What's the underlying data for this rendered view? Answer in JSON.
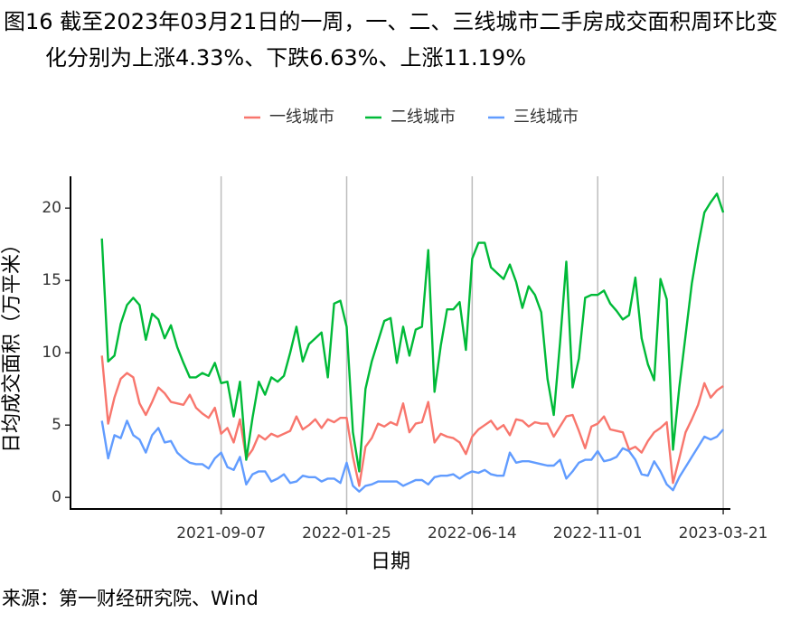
{
  "chart_data": {
    "type": "line",
    "title": "图16  截至2023年03月21日的一周，一、二、三线城市二手房成交面积周环比变化分别为上涨4.33%、下跌6.63%、上涨11.19%",
    "xlabel": "日期",
    "ylabel": "日均成交面积（万平米）",
    "source": "来源：第一财经研究院、Wind",
    "legend": "top",
    "x": [
      "2021-04-27",
      "2021-05-04",
      "2021-05-11",
      "2021-05-18",
      "2021-05-25",
      "2021-06-01",
      "2021-06-08",
      "2021-06-15",
      "2021-06-22",
      "2021-06-29",
      "2021-07-06",
      "2021-07-13",
      "2021-07-20",
      "2021-07-27",
      "2021-08-03",
      "2021-08-10",
      "2021-08-17",
      "2021-08-24",
      "2021-08-31",
      "2021-09-07",
      "2021-09-14",
      "2021-09-21",
      "2021-09-28",
      "2021-10-05",
      "2021-10-12",
      "2021-10-19",
      "2021-10-26",
      "2021-11-02",
      "2021-11-09",
      "2021-11-16",
      "2021-11-23",
      "2021-11-30",
      "2021-12-07",
      "2021-12-14",
      "2021-12-21",
      "2021-12-28",
      "2022-01-04",
      "2022-01-11",
      "2022-01-18",
      "2022-01-25",
      "2022-02-01",
      "2022-02-08",
      "2022-02-15",
      "2022-02-22",
      "2022-03-01",
      "2022-03-08",
      "2022-03-15",
      "2022-03-22",
      "2022-03-29",
      "2022-04-05",
      "2022-04-12",
      "2022-04-19",
      "2022-04-26",
      "2022-05-03",
      "2022-05-10",
      "2022-05-17",
      "2022-05-24",
      "2022-05-31",
      "2022-06-07",
      "2022-06-14",
      "2022-06-21",
      "2022-06-28",
      "2022-07-05",
      "2022-07-12",
      "2022-07-19",
      "2022-07-26",
      "2022-08-02",
      "2022-08-09",
      "2022-08-16",
      "2022-08-23",
      "2022-08-30",
      "2022-09-06",
      "2022-09-13",
      "2022-09-20",
      "2022-09-27",
      "2022-10-04",
      "2022-10-11",
      "2022-10-18",
      "2022-10-25",
      "2022-11-01",
      "2022-11-08",
      "2022-11-15",
      "2022-11-22",
      "2022-11-29",
      "2022-12-06",
      "2022-12-13",
      "2022-12-20",
      "2022-12-27",
      "2023-01-03",
      "2023-01-10",
      "2023-01-17",
      "2023-01-24",
      "2023-01-31",
      "2023-02-07",
      "2023-02-14",
      "2023-02-21",
      "2023-02-28",
      "2023-03-07",
      "2023-03-14",
      "2023-03-21"
    ],
    "series": [
      {
        "name": "一线城市",
        "color": "#F8766D",
        "values": [
          9.8,
          5.1,
          6.9,
          8.2,
          8.6,
          8.3,
          6.5,
          5.7,
          6.6,
          7.6,
          7.2,
          6.6,
          6.5,
          6.4,
          7.1,
          6.2,
          5.8,
          5.5,
          6.2,
          4.4,
          4.8,
          3.8,
          5.4,
          2.7,
          3.3,
          4.3,
          4.0,
          4.4,
          4.2,
          4.4,
          4.6,
          5.6,
          4.7,
          5.0,
          5.4,
          4.8,
          5.4,
          5.2,
          5.5,
          5.5,
          2.8,
          0.8,
          3.5,
          4.1,
          5.1,
          4.9,
          5.2,
          5.0,
          6.5,
          4.5,
          5.1,
          5.2,
          6.6,
          3.8,
          4.4,
          4.2,
          4.1,
          3.8,
          3.0,
          4.2,
          4.7,
          5.0,
          5.3,
          4.7,
          5.0,
          4.3,
          5.4,
          5.3,
          4.9,
          5.2,
          5.1,
          5.1,
          4.2,
          4.9,
          5.6,
          5.7,
          4.6,
          3.4,
          4.9,
          5.1,
          5.6,
          4.7,
          4.6,
          4.5,
          3.3,
          3.5,
          3.1,
          3.9,
          4.5,
          4.8,
          5.2,
          1.0,
          2.7,
          4.5,
          5.4,
          6.4,
          7.9,
          6.9,
          7.4,
          7.7
        ]
      },
      {
        "name": "二线城市",
        "color": "#00BA38",
        "values": [
          17.9,
          9.4,
          9.8,
          12.0,
          13.3,
          13.8,
          13.3,
          10.9,
          12.7,
          12.3,
          11.0,
          11.9,
          10.4,
          9.3,
          8.3,
          8.3,
          8.6,
          8.4,
          9.3,
          7.9,
          8.0,
          5.6,
          8.0,
          2.6,
          5.5,
          8.0,
          7.1,
          8.3,
          8.0,
          8.4,
          10.0,
          11.8,
          9.4,
          10.6,
          11.0,
          11.4,
          8.3,
          13.4,
          13.6,
          11.8,
          4.5,
          1.8,
          7.5,
          9.4,
          10.8,
          12.2,
          12.4,
          9.3,
          11.8,
          9.8,
          11.6,
          11.8,
          17.1,
          7.3,
          10.5,
          13.0,
          13.0,
          13.5,
          10.2,
          16.5,
          17.6,
          17.6,
          15.9,
          15.5,
          15.1,
          16.1,
          14.9,
          13.1,
          14.6,
          14.0,
          12.8,
          8.2,
          5.7,
          10.7,
          16.3,
          7.6,
          9.6,
          13.8,
          14.0,
          14.0,
          14.3,
          13.4,
          12.9,
          12.3,
          12.6,
          15.2,
          11.0,
          9.2,
          8.1,
          15.1,
          13.7,
          3.3,
          7.6,
          11.2,
          14.8,
          17.4,
          19.7,
          20.4,
          21.0,
          19.7
        ]
      },
      {
        "name": "三线城市",
        "color": "#619CFF",
        "values": [
          5.3,
          2.7,
          4.3,
          4.1,
          5.3,
          4.3,
          4.0,
          3.1,
          4.3,
          4.8,
          3.8,
          3.9,
          3.1,
          2.7,
          2.4,
          2.3,
          2.3,
          2.0,
          2.7,
          3.1,
          2.1,
          1.9,
          2.8,
          0.9,
          1.6,
          1.8,
          1.8,
          1.1,
          1.3,
          1.6,
          1.0,
          1.1,
          1.5,
          1.4,
          1.4,
          1.1,
          1.3,
          1.3,
          1.0,
          2.4,
          0.8,
          0.4,
          0.8,
          0.9,
          1.1,
          1.1,
          1.1,
          1.1,
          0.8,
          1.0,
          1.2,
          1.2,
          0.9,
          1.4,
          1.5,
          1.5,
          1.6,
          1.3,
          1.6,
          1.8,
          1.7,
          1.9,
          1.6,
          1.5,
          1.5,
          3.1,
          2.4,
          2.5,
          2.5,
          2.4,
          2.3,
          2.2,
          2.2,
          2.6,
          1.3,
          1.8,
          2.4,
          2.6,
          2.6,
          3.2,
          2.5,
          2.6,
          2.8,
          3.4,
          3.2,
          2.6,
          1.6,
          1.5,
          2.5,
          1.8,
          0.9,
          0.5,
          1.4,
          2.1,
          2.8,
          3.5,
          4.2,
          4.0,
          4.2,
          4.7
        ]
      }
    ],
    "xlim": [
      "2021-03-23",
      "2023-03-29"
    ],
    "xticks": [
      "2021-09-07",
      "2022-01-25",
      "2022-06-14",
      "2022-11-01",
      "2023-03-21"
    ],
    "ylim": [
      -0.8,
      22.2
    ],
    "yticks": [
      0,
      5,
      10,
      15,
      20
    ],
    "grid": "x"
  }
}
